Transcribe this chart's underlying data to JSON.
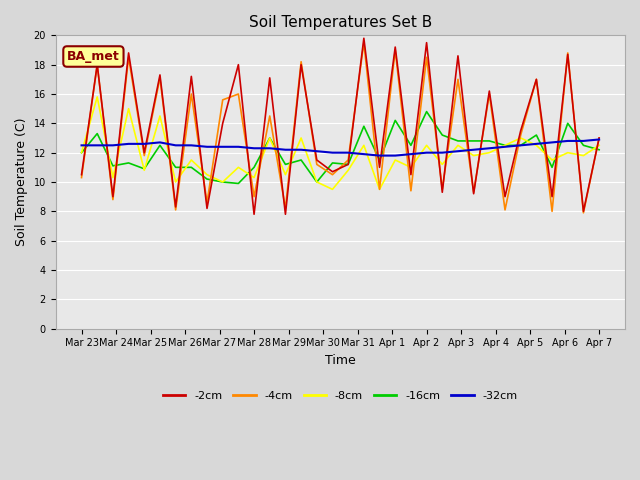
{
  "title": "Soil Temperatures Set B",
  "xlabel": "Time",
  "ylabel": "Soil Temperature (C)",
  "ylim": [
    0,
    20
  ],
  "yticks": [
    0,
    2,
    4,
    6,
    8,
    10,
    12,
    14,
    16,
    18,
    20
  ],
  "bg_color": "#d8d8d8",
  "plot_bg_color": "#e8e8e8",
  "legend_label": "BA_met",
  "legend_bg": "#ffff99",
  "legend_border": "#8b0000",
  "series_colors": {
    "-2cm": "#cc0000",
    "-4cm": "#ff8800",
    "-8cm": "#ffff00",
    "-16cm": "#00cc00",
    "-32cm": "#0000cc"
  },
  "xtick_labels": [
    "Mar 23",
    "Mar 24",
    "Mar 25",
    "Mar 26",
    "Mar 27",
    "Mar 28",
    "Mar 29",
    "Mar 30",
    "Mar 31",
    "Apr 1",
    "Apr 2",
    "Apr 3",
    "Apr 4",
    "Apr 5",
    "Apr 6",
    "Apr 7"
  ],
  "data_2cm": [
    10.5,
    18.0,
    9.0,
    18.8,
    12.0,
    17.3,
    8.3,
    17.2,
    8.2,
    14.0,
    18.0,
    7.8,
    17.1,
    7.8,
    18.0,
    11.5,
    10.7,
    11.2,
    19.8,
    11.0,
    19.2,
    10.5,
    19.5,
    9.3,
    18.6,
    9.2,
    16.2,
    9.0,
    13.5,
    17.0,
    9.0,
    18.7,
    8.0,
    13.0
  ],
  "data_4cm": [
    10.3,
    18.0,
    8.8,
    18.5,
    11.8,
    17.1,
    8.1,
    16.0,
    8.6,
    15.6,
    16.0,
    9.0,
    14.5,
    8.2,
    18.2,
    11.2,
    10.5,
    11.5,
    19.5,
    9.5,
    19.0,
    9.4,
    18.5,
    9.5,
    17.0,
    9.3,
    16.0,
    8.1,
    13.2,
    17.0,
    8.0,
    18.8,
    7.9,
    13.0
  ],
  "data_8cm": [
    12.0,
    15.8,
    10.3,
    15.0,
    10.8,
    14.5,
    10.0,
    11.5,
    10.5,
    10.0,
    11.0,
    10.3,
    13.0,
    10.5,
    13.0,
    10.0,
    9.5,
    10.8,
    12.5,
    9.5,
    11.5,
    11.0,
    12.5,
    11.2,
    12.5,
    11.8,
    12.0,
    12.5,
    13.0,
    12.5,
    11.5,
    12.0,
    11.8,
    12.5
  ],
  "data_16cm": [
    12.0,
    13.3,
    11.1,
    11.3,
    10.9,
    12.5,
    11.0,
    11.0,
    10.2,
    10.0,
    9.9,
    11.0,
    13.0,
    11.2,
    11.5,
    10.0,
    11.3,
    11.2,
    13.8,
    11.5,
    14.2,
    12.5,
    14.8,
    13.2,
    12.8,
    12.8,
    12.8,
    12.5,
    12.5,
    13.2,
    11.0,
    14.0,
    12.5,
    12.2
  ],
  "data_32cm": [
    12.5,
    12.5,
    12.5,
    12.6,
    12.6,
    12.7,
    12.5,
    12.5,
    12.4,
    12.4,
    12.4,
    12.3,
    12.3,
    12.2,
    12.2,
    12.1,
    12.0,
    12.0,
    11.9,
    11.8,
    11.8,
    11.9,
    12.0,
    12.0,
    12.1,
    12.2,
    12.3,
    12.4,
    12.5,
    12.6,
    12.7,
    12.8,
    12.8,
    12.9
  ]
}
